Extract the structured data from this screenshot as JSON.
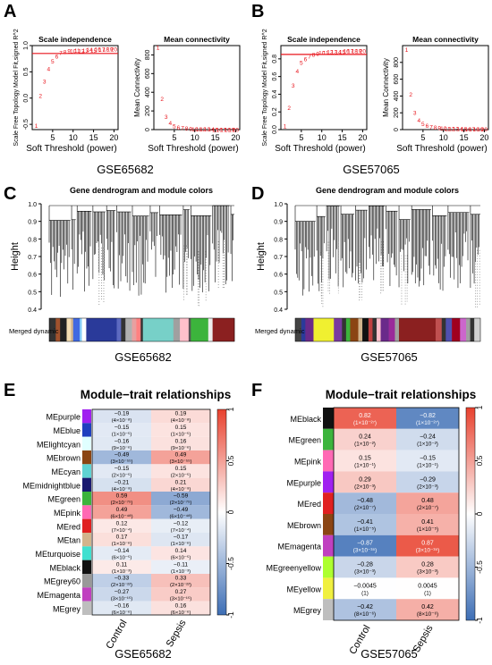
{
  "panels": {
    "A": {
      "letter": "A",
      "caption": "GSE65682"
    },
    "B": {
      "letter": "B",
      "caption": "GSE57065"
    },
    "C": {
      "letter": "C",
      "caption": "GSE65682",
      "title": "Gene dendrogram and module colors",
      "ylabel": "Height",
      "bar_label": "Merged dynamic"
    },
    "D": {
      "letter": "D",
      "caption": "GSE57065",
      "title": "Gene dendrogram and module colors",
      "ylabel": "Height",
      "bar_label": "Merged dynamic"
    },
    "E": {
      "letter": "E",
      "caption": "GSE65682",
      "title": "Module−trait relationships"
    },
    "F": {
      "letter": "F",
      "caption": "GSE57065",
      "title": "Module−trait relationships"
    }
  },
  "colors": {
    "pos": "#e8412e",
    "neg": "#3d6eb5",
    "mid": "#ffffff",
    "threshold": "#e8141b",
    "point": "#e8141b"
  },
  "chart_data": [
    {
      "id": "A-scale",
      "type": "scatter",
      "title": "Scale independence",
      "xlabel": "Soft Threshold (power)",
      "ylabel": "Scale Free Topology Model Fit,signed R^2",
      "xlim": [
        0,
        21
      ],
      "ylim": [
        -0.6,
        1.0
      ],
      "xticks": [
        "5",
        "10",
        "15",
        "20"
      ],
      "yticks": [
        "-0.5",
        "0.0",
        "0.5",
        "1.0"
      ],
      "threshold": 0.85,
      "x": [
        1,
        2,
        3,
        4,
        5,
        6,
        7,
        8,
        9,
        10,
        11,
        12,
        13,
        14,
        15,
        16,
        17,
        18,
        19,
        20
      ],
      "y": [
        -0.52,
        0.05,
        0.32,
        0.56,
        0.7,
        0.8,
        0.86,
        0.88,
        0.9,
        0.9,
        0.91,
        0.9,
        0.91,
        0.92,
        0.91,
        0.93,
        0.92,
        0.93,
        0.93,
        0.93
      ]
    },
    {
      "id": "A-conn",
      "type": "scatter",
      "title": "Mean connectivity",
      "xlabel": "Soft Threshold (power)",
      "ylabel": "Mean Connectivity",
      "xlim": [
        0,
        21
      ],
      "ylim": [
        0,
        900
      ],
      "xticks": [
        "5",
        "10",
        "15",
        "20"
      ],
      "yticks": [
        "0",
        "200",
        "400",
        "600",
        "800"
      ],
      "x": [
        1,
        2,
        3,
        4,
        5,
        6,
        7,
        8,
        9,
        10,
        11,
        12,
        13,
        14,
        15,
        16,
        17,
        18,
        19,
        20
      ],
      "y": [
        880,
        330,
        140,
        70,
        40,
        26,
        18,
        12,
        9,
        7,
        5,
        4,
        3,
        3,
        2,
        2,
        2,
        1,
        1,
        1
      ]
    },
    {
      "id": "B-scale",
      "type": "scatter",
      "title": "Scale independence",
      "xlabel": "Soft Threshold (power)",
      "ylabel": "Scale Free Topology Model Fit,signed R^2",
      "xlim": [
        0,
        21
      ],
      "ylim": [
        0,
        0.95
      ],
      "xticks": [
        "5",
        "10",
        "15",
        "20"
      ],
      "yticks": [
        "0.0",
        "0.2",
        "0.4",
        "0.6",
        "0.8"
      ],
      "threshold": 0.85,
      "x": [
        1,
        2,
        3,
        4,
        5,
        6,
        7,
        8,
        9,
        10,
        11,
        12,
        13,
        14,
        15,
        16,
        17,
        18,
        19,
        20
      ],
      "y": [
        0.04,
        0.25,
        0.5,
        0.66,
        0.76,
        0.8,
        0.83,
        0.85,
        0.86,
        0.87,
        0.87,
        0.88,
        0.88,
        0.88,
        0.88,
        0.89,
        0.89,
        0.89,
        0.89,
        0.89
      ]
    },
    {
      "id": "B-conn",
      "type": "scatter",
      "title": "Mean connectivity",
      "xlabel": "Soft Threshold (power)",
      "ylabel": "Mean Connectivity",
      "xlim": [
        0,
        21
      ],
      "ylim": [
        0,
        1000
      ],
      "xticks": [
        "5",
        "10",
        "15",
        "20"
      ],
      "yticks": [
        "0",
        "200",
        "400",
        "600",
        "800"
      ],
      "x": [
        1,
        2,
        3,
        4,
        5,
        6,
        7,
        8,
        9,
        10,
        11,
        12,
        13,
        14,
        15,
        16,
        17,
        18,
        19,
        20
      ],
      "y": [
        950,
        420,
        200,
        110,
        70,
        48,
        34,
        26,
        20,
        16,
        13,
        11,
        9,
        8,
        7,
        6,
        5,
        5,
        4,
        4
      ]
    },
    {
      "id": "E-heatmap",
      "type": "heatmap",
      "title": "Module−trait relationships",
      "columns": [
        "Control",
        "Sepsis"
      ],
      "legend_ticks": [
        "1",
        "0.5",
        "0",
        "-0.5",
        "-1"
      ],
      "rows": [
        {
          "name": "MEpurple",
          "color": "#a020f0",
          "cells": [
            {
              "r": -0.19,
              "l1": "−0.19",
              "l2": "(4×10⁻⁸)"
            },
            {
              "r": 0.19,
              "l1": "0.19",
              "l2": "(4×10⁻⁸)"
            }
          ]
        },
        {
          "name": "MEblue",
          "color": "#1f3fbf",
          "cells": [
            {
              "r": -0.15,
              "l1": "−0.15",
              "l2": "(1×10⁻⁵)"
            },
            {
              "r": 0.15,
              "l1": "0.15",
              "l2": "(1×10⁻⁵)"
            }
          ]
        },
        {
          "name": "MElightcyan",
          "color": "#e0ffff",
          "cells": [
            {
              "r": -0.16,
              "l1": "−0.16",
              "l2": "(9×10⁻⁶)"
            },
            {
              "r": 0.16,
              "l1": "0.16",
              "l2": "(9×10⁻⁶)"
            }
          ]
        },
        {
          "name": "MEbrown",
          "color": "#8b4513",
          "cells": [
            {
              "r": -0.49,
              "l1": "−0.49",
              "l2": "(3×10⁻⁵⁵)"
            },
            {
              "r": 0.49,
              "l1": "0.49",
              "l2": "(3×10⁻⁵⁵)"
            }
          ]
        },
        {
          "name": "MEcyan",
          "color": "#5fd3d3",
          "cells": [
            {
              "r": -0.15,
              "l1": "−0.15",
              "l2": "(2×10⁻⁵)"
            },
            {
              "r": 0.15,
              "l1": "0.15",
              "l2": "(2×10⁻⁵)"
            }
          ]
        },
        {
          "name": "MEmidnightblue",
          "color": "#191970",
          "cells": [
            {
              "r": -0.21,
              "l1": "−0.21",
              "l2": "(4×10⁻⁹)"
            },
            {
              "r": 0.21,
              "l1": "0.21",
              "l2": "(4×10⁻⁹)"
            }
          ]
        },
        {
          "name": "MEgreen",
          "color": "#3cb43c",
          "cells": [
            {
              "r": 0.59,
              "l1": "0.59",
              "l2": "(2×10⁻⁷⁵)"
            },
            {
              "r": -0.59,
              "l1": "−0.59",
              "l2": "(2×10⁻⁷⁵)"
            }
          ]
        },
        {
          "name": "MEpink",
          "color": "#ff69b4",
          "cells": [
            {
              "r": 0.49,
              "l1": "0.49",
              "l2": "(6×10⁻⁴⁸)"
            },
            {
              "r": -0.49,
              "l1": "−0.49",
              "l2": "(6×10⁻⁴⁸)"
            }
          ]
        },
        {
          "name": "MEred",
          "color": "#e02020",
          "cells": [
            {
              "r": 0.12,
              "l1": "0.12",
              "l2": "(7×10⁻⁴)"
            },
            {
              "r": -0.12,
              "l1": "−0.12",
              "l2": "(7×10⁻⁴)"
            }
          ]
        },
        {
          "name": "MEtan",
          "color": "#d2b48c",
          "cells": [
            {
              "r": 0.17,
              "l1": "0.17",
              "l2": "(1×10⁻⁶)"
            },
            {
              "r": -0.17,
              "l1": "−0.17",
              "l2": "(1×10⁻⁶)"
            }
          ]
        },
        {
          "name": "MEturquoise",
          "color": "#40e0d0",
          "cells": [
            {
              "r": -0.14,
              "l1": "−0.14",
              "l2": "(6×10⁻⁵)"
            },
            {
              "r": 0.14,
              "l1": "0.14",
              "l2": "(6×10⁻⁵)"
            }
          ]
        },
        {
          "name": "MEblack",
          "color": "#111111",
          "cells": [
            {
              "r": 0.11,
              "l1": "0.11",
              "l2": "(1×10⁻³)"
            },
            {
              "r": -0.11,
              "l1": "−0.11",
              "l2": "(1×10⁻³)"
            }
          ]
        },
        {
          "name": "MEgrey60",
          "color": "#999999",
          "cells": [
            {
              "r": -0.33,
              "l1": "−0.33",
              "l2": "(2×10⁻²²)"
            },
            {
              "r": 0.33,
              "l1": "0.33",
              "l2": "(2×10⁻²²)"
            }
          ]
        },
        {
          "name": "MEmagenta",
          "color": "#c040c0",
          "cells": [
            {
              "r": -0.27,
              "l1": "−0.27",
              "l2": "(3×10⁻¹⁵)"
            },
            {
              "r": 0.27,
              "l1": "0.27",
              "l2": "(3×10⁻¹⁵)"
            }
          ]
        },
        {
          "name": "MEgrey",
          "color": "#bebebe",
          "cells": [
            {
              "r": -0.16,
              "l1": "−0.16",
              "l2": "(6×10⁻⁶)"
            },
            {
              "r": 0.16,
              "l1": "0.16",
              "l2": "(6×10⁻⁶)"
            }
          ]
        }
      ]
    },
    {
      "id": "F-heatmap",
      "type": "heatmap",
      "title": "Module−trait relationships",
      "columns": [
        "Control",
        "Sepsis"
      ],
      "legend_ticks": [
        "1",
        "0.5",
        "0",
        "-0.5",
        "-1"
      ],
      "rows": [
        {
          "name": "MEblack",
          "color": "#111111",
          "cells": [
            {
              "r": 0.82,
              "l1": "0.82",
              "l2": "(1×10⁻²⁷)"
            },
            {
              "r": -0.82,
              "l1": "−0.82",
              "l2": "(1×10⁻²⁷)"
            }
          ]
        },
        {
          "name": "MEgreen",
          "color": "#3cb43c",
          "cells": [
            {
              "r": 0.24,
              "l1": "0.24",
              "l2": "(1×10⁻²)"
            },
            {
              "r": -0.24,
              "l1": "−0.24",
              "l2": "(1×10⁻²)"
            }
          ]
        },
        {
          "name": "MEpink",
          "color": "#ff69b4",
          "cells": [
            {
              "r": 0.15,
              "l1": "0.15",
              "l2": "(1×10⁻¹)"
            },
            {
              "r": -0.15,
              "l1": "−0.15",
              "l2": "(1×10⁻¹)"
            }
          ]
        },
        {
          "name": "MEpurple",
          "color": "#a020f0",
          "cells": [
            {
              "r": 0.29,
              "l1": "0.29",
              "l2": "(2×10⁻³)"
            },
            {
              "r": -0.29,
              "l1": "−0.29",
              "l2": "(2×10⁻³)"
            }
          ]
        },
        {
          "name": "MEred",
          "color": "#e02020",
          "cells": [
            {
              "r": -0.48,
              "l1": "−0.48",
              "l2": "(2×10⁻⁷)"
            },
            {
              "r": 0.48,
              "l1": "0.48",
              "l2": "(2×10⁻⁷)"
            }
          ]
        },
        {
          "name": "MEbrown",
          "color": "#8b4513",
          "cells": [
            {
              "r": -0.41,
              "l1": "−0.41",
              "l2": "(1×10⁻⁵)"
            },
            {
              "r": 0.41,
              "l1": "0.41",
              "l2": "(1×10⁻⁵)"
            }
          ]
        },
        {
          "name": "MEmagenta",
          "color": "#c040c0",
          "cells": [
            {
              "r": -0.87,
              "l1": "−0.87",
              "l2": "(3×10⁻³⁵)"
            },
            {
              "r": 0.87,
              "l1": "0.87",
              "l2": "(3×10⁻³⁵)"
            }
          ]
        },
        {
          "name": "MEgreenyellow",
          "color": "#adff2f",
          "cells": [
            {
              "r": -0.28,
              "l1": "−0.28",
              "l2": "(3×10⁻³)"
            },
            {
              "r": 0.28,
              "l1": "0.28",
              "l2": "(3×10⁻³)"
            }
          ]
        },
        {
          "name": "MEyellow",
          "color": "#f0f040",
          "cells": [
            {
              "r": -0.0045,
              "l1": "−0.0045",
              "l2": "(1)"
            },
            {
              "r": 0.0045,
              "l1": "0.0045",
              "l2": "(1)"
            }
          ]
        },
        {
          "name": "MEgrey",
          "color": "#bebebe",
          "cells": [
            {
              "r": -0.42,
              "l1": "−0.42",
              "l2": "(8×10⁻⁶)"
            },
            {
              "r": 0.42,
              "l1": "0.42",
              "l2": "(8×10⁻⁶)"
            }
          ]
        }
      ]
    }
  ]
}
